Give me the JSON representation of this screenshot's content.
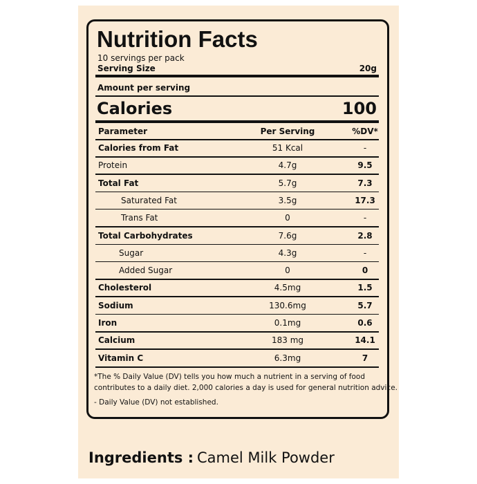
{
  "label": {
    "title": "Nutrition Facts",
    "servings": "10 servings per pack",
    "serving_size": {
      "label": "Serving Size",
      "value": "20g"
    },
    "amount_per_serving": "Amount per serving",
    "calories": {
      "label": "Calories",
      "value": "100"
    },
    "table": {
      "header": [
        "Parameter",
        "Per Serving",
        "%DV*"
      ],
      "rows": [
        [
          "Calories from Fat",
          "51  Kcal",
          "-"
        ],
        [
          "Protein",
          "4.7g",
          "9.5"
        ],
        [
          "Total Fat",
          "5.7g",
          "7.3"
        ],
        [
          "Saturated Fat",
          "3.5g",
          "17.3"
        ],
        [
          "Trans Fat",
          "0",
          "-"
        ],
        [
          "Total Carbohydrates",
          "7.6g",
          "2.8"
        ],
        [
          "Sugar",
          "4.3g",
          "-"
        ],
        [
          "Added Sugar",
          "0",
          "0"
        ],
        [
          "Cholesterol",
          "4.5mg",
          "1.5"
        ],
        [
          "Sodium",
          "130.6mg",
          "5.7"
        ],
        [
          "Iron",
          "0.1mg",
          "0.6"
        ],
        [
          "Calcium",
          "183 mg",
          "14.1"
        ],
        [
          "Vitamin C",
          "6.3mg",
          "7"
        ]
      ]
    },
    "footnotes": [
      "*The % Daily Value (DV) tells you how much a nutrient in a serving of food",
      "contributes to a daily diet. 2,000 calories a day is used for general nutrition advice.",
      "- Daily Value (DV) not established."
    ]
  },
  "ingredients": {
    "label": "Ingredients :",
    "value": "Camel Milk Powder"
  }
}
